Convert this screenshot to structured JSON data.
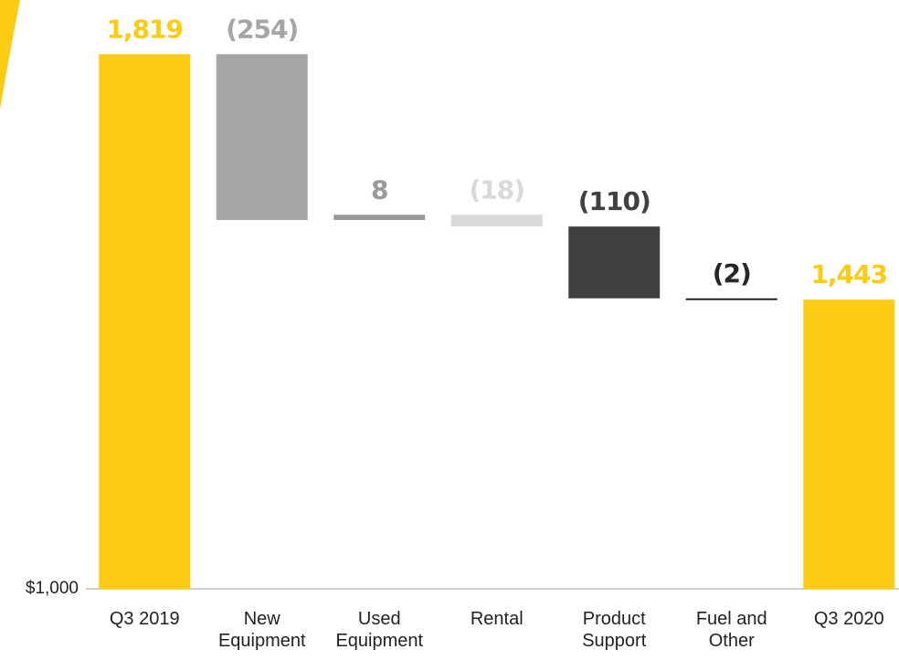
{
  "chart_data": {
    "type": "waterfall",
    "categories": [
      [
        "Q3 2019"
      ],
      [
        "New",
        "Equipment"
      ],
      [
        "Used",
        "Equipment"
      ],
      [
        "Rental"
      ],
      [
        "Product",
        "Support"
      ],
      [
        "Fuel and",
        "Other"
      ],
      [
        "Q3 2020"
      ]
    ],
    "values": [
      1819,
      -254,
      8,
      -18,
      -110,
      -2,
      1443
    ],
    "value_labels": [
      "1,819",
      "(254)",
      "8",
      "(18)",
      "(110)",
      "(2)",
      "1,443"
    ],
    "colors": [
      "#fccc14",
      "#a6a6a6",
      "#999999",
      "#d9d9d9",
      "#404040",
      "#262626",
      "#fccc14"
    ],
    "ylim": [
      1000,
      1902
    ],
    "yticks": [
      {
        "value": 1000,
        "label": "$1,000"
      }
    ]
  }
}
